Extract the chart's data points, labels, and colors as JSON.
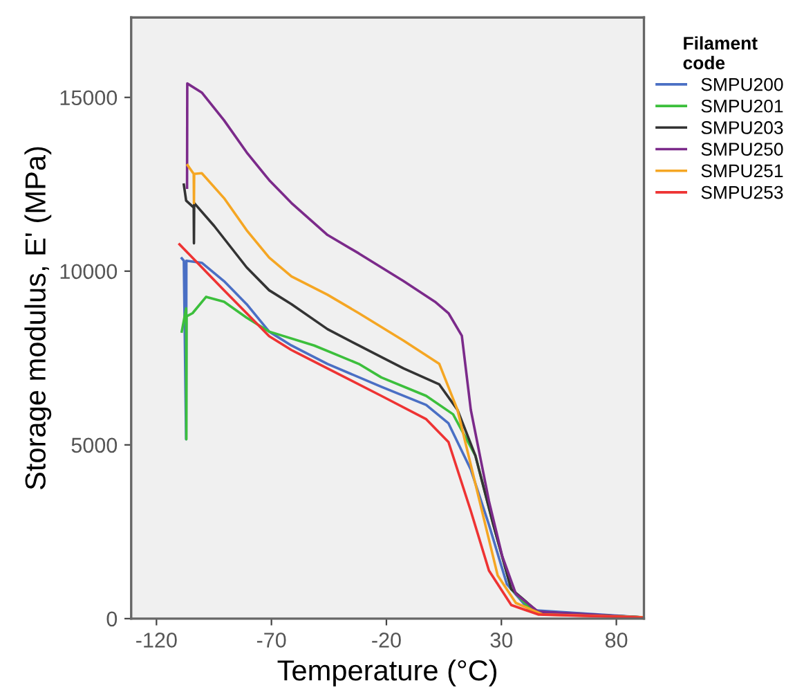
{
  "chart_data": {
    "type": "line",
    "xlabel": "Temperature (°C)",
    "ylabel": "Storage modulus, E' (MPa)",
    "legend_title": "Filament\ncode",
    "legend": "right",
    "grid": false,
    "marker": "none",
    "line_style": "solid",
    "xlim": [
      -131,
      92
    ],
    "ylim": [
      0,
      17300
    ],
    "xticks": [
      -120,
      -70,
      -20,
      30,
      80
    ],
    "yticks": [
      0,
      5000,
      10000,
      15000
    ],
    "series": [
      {
        "name": "SMPU200",
        "color": "#4a6fc4",
        "x": [
          -109,
          -108.1,
          -107.1,
          -107,
          -100.3,
          -90.6,
          -80.8,
          -71,
          -61.3,
          -45.6,
          -22.2,
          -2.7,
          7,
          16.7,
          24.6,
          32.4,
          42.1,
          91
        ],
        "values": [
          10370,
          10300,
          5160,
          10300,
          10240,
          9710,
          9050,
          8260,
          7860,
          7330,
          6670,
          6150,
          5620,
          4290,
          2700,
          990,
          250,
          40
        ]
      },
      {
        "name": "SMPU201",
        "color": "#3cbf3c",
        "x": [
          -109,
          -107.1,
          -107,
          -106.9,
          -104.3,
          -98.4,
          -90.6,
          -80.8,
          -71,
          -51.4,
          -32,
          -22.2,
          -2.7,
          9,
          18.7,
          26.5,
          34.3,
          44,
          91
        ],
        "values": [
          8260,
          8930,
          5160,
          8700,
          8790,
          9260,
          9120,
          8660,
          8260,
          7860,
          7330,
          6940,
          6410,
          5880,
          4690,
          2700,
          850,
          190,
          40
        ]
      },
      {
        "name": "SMPU203",
        "color": "#333333",
        "x": [
          -108.1,
          -107.1,
          -103.8,
          -103.7,
          -103.6,
          -94.9,
          -80.8,
          -71,
          -61.3,
          -45.6,
          -32,
          -12.5,
          3,
          10.9,
          18.7,
          26.5,
          34.3,
          46,
          91
        ],
        "values": [
          12490,
          12030,
          11830,
          10800,
          11960,
          11300,
          10110,
          9450,
          9050,
          8330,
          7860,
          7200,
          6740,
          6010,
          4690,
          2700,
          850,
          190,
          40
        ]
      },
      {
        "name": "SMPU250",
        "color": "#7b2a8a",
        "x": [
          -106.7,
          -106.6,
          -100.3,
          -90.6,
          -80.8,
          -71,
          -61.3,
          -45.6,
          -32,
          -12.5,
          1.1,
          7,
          12.8,
          16.7,
          24.6,
          30.4,
          36.3,
          46,
          91
        ],
        "values": [
          12400,
          15400,
          15140,
          14340,
          13420,
          12620,
          11960,
          11040,
          10510,
          9710,
          9120,
          8790,
          8140,
          6010,
          3380,
          1790,
          710,
          200,
          40
        ]
      },
      {
        "name": "SMPU251",
        "color": "#f5a623",
        "x": [
          -106.5,
          -103.8,
          -103.7,
          -103.6,
          -100.3,
          -90.6,
          -80.8,
          -71,
          -61.3,
          -45.6,
          -32,
          -12.5,
          3,
          10.9,
          20.6,
          28.4,
          36.3,
          48,
          91
        ],
        "values": [
          13050,
          12800,
          11960,
          12800,
          12820,
          12100,
          11180,
          10390,
          9850,
          9320,
          8790,
          8000,
          7330,
          6010,
          3360,
          1240,
          450,
          120,
          40
        ]
      },
      {
        "name": "SMPU253",
        "color": "#ee3333",
        "x": [
          -110,
          -105.1,
          -90.6,
          -80.8,
          -71,
          -61.3,
          -45.6,
          -22.2,
          -2.7,
          7,
          16.7,
          24.6,
          34.3,
          46,
          91
        ],
        "values": [
          10770,
          10440,
          9450,
          8790,
          8130,
          7730,
          7200,
          6410,
          5740,
          5080,
          3100,
          1380,
          390,
          120,
          30
        ]
      }
    ]
  }
}
